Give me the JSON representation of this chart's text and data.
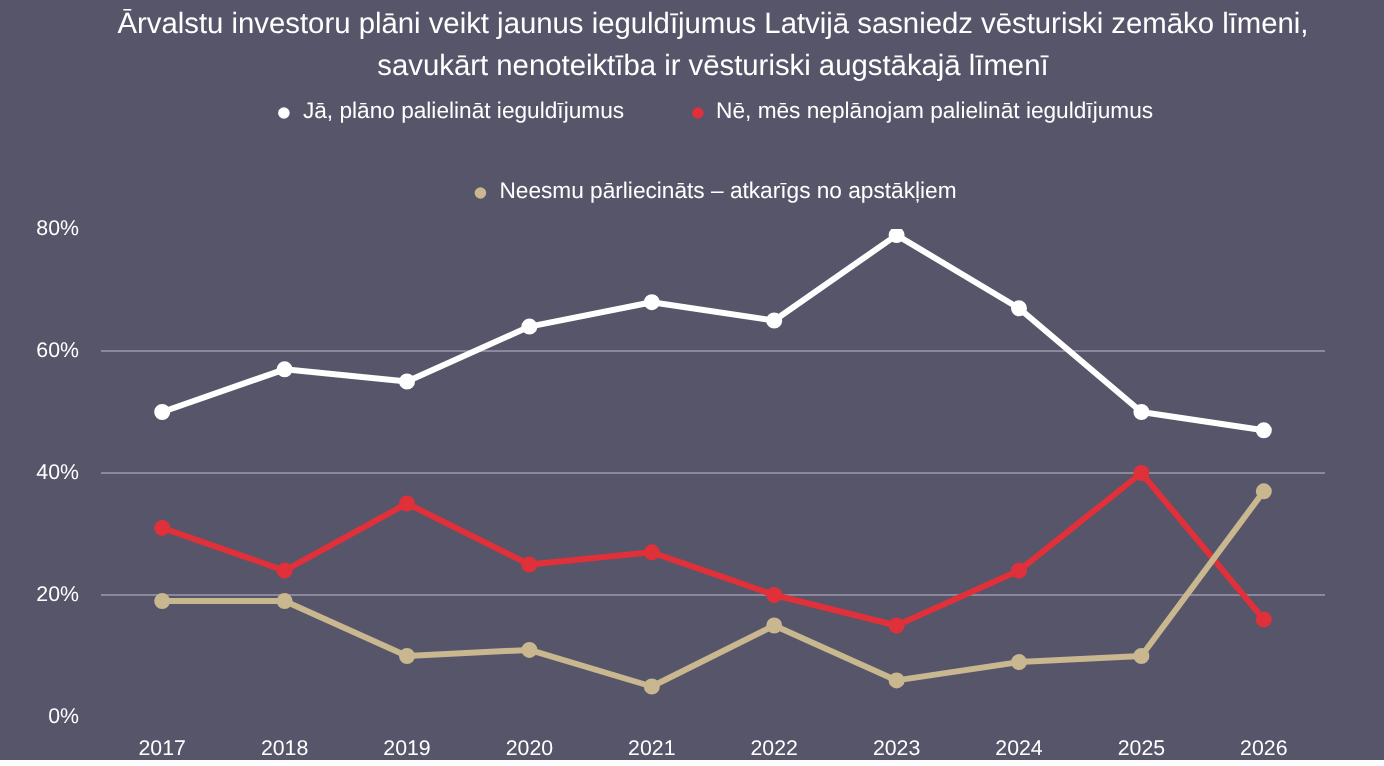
{
  "chart_data": {
    "type": "line",
    "title": "Ārvalstu investoru plāni veikt jaunus ieguldījumus Latvijā sasniedz vēsturiski zemāko līmeni,\nsavukārt nenoteiktība ir vēsturiski augstākajā līmenī",
    "categories": [
      "2017",
      "2018",
      "2019",
      "2020",
      "2021",
      "2022",
      "2023",
      "2024",
      "2025",
      "2026"
    ],
    "series": [
      {
        "name": "Jā, plāno palielināt ieguldījumus",
        "color": "#ffffff",
        "values": [
          50,
          57,
          55,
          64,
          68,
          65,
          79,
          67,
          50,
          47
        ]
      },
      {
        "name": "Nē, mēs neplānojam palielināt ieguldījumus",
        "color": "#e0303a",
        "values": [
          31,
          24,
          35,
          25,
          27,
          20,
          15,
          24,
          40,
          16
        ]
      },
      {
        "name": "Neesmu pārliecināts – atkarīgs no apstākļiem",
        "color": "#c9b78f",
        "values": [
          19,
          19,
          10,
          11,
          5,
          15,
          6,
          9,
          10,
          37
        ]
      }
    ],
    "ylim": [
      0,
      80
    ],
    "yticks": [
      {
        "value": 0,
        "label": "0%"
      },
      {
        "value": 20,
        "label": "20%"
      },
      {
        "value": 40,
        "label": "40%"
      },
      {
        "value": 60,
        "label": "60%"
      },
      {
        "value": 80,
        "label": "80%"
      }
    ],
    "grid": "y",
    "legend": "top",
    "marker": "circle",
    "line_style": "solid"
  }
}
